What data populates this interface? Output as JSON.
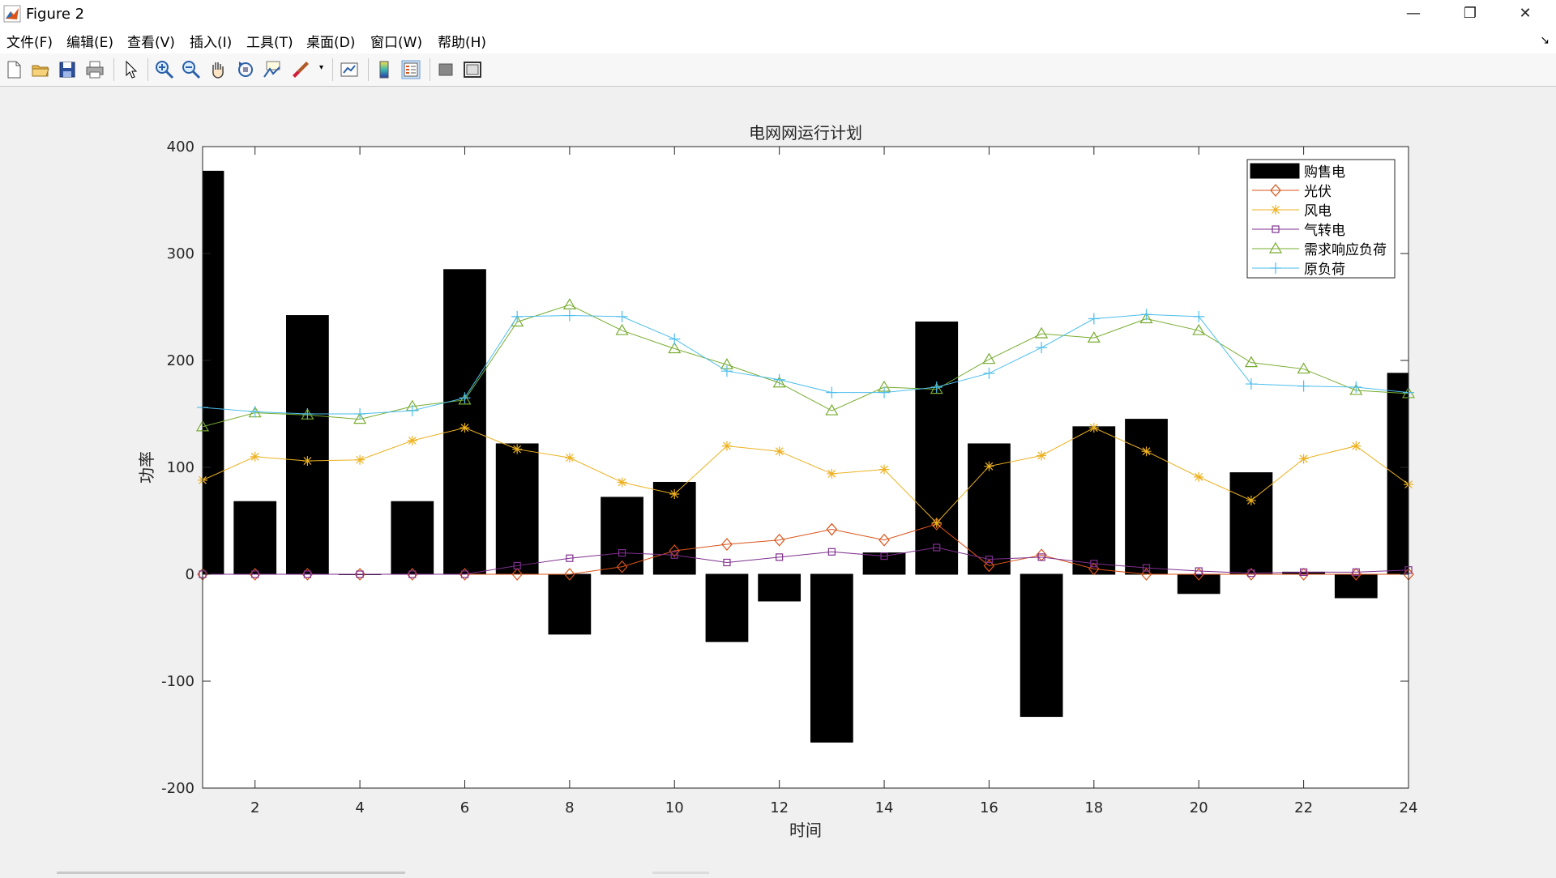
{
  "window": {
    "title": "Figure 2",
    "min": "—",
    "restore": "❐",
    "close": "✕",
    "dock": "↘"
  },
  "menu": [
    "文件(F)",
    "编辑(E)",
    "查看(V)",
    "插入(I)",
    "工具(T)",
    "桌面(D)",
    "窗口(W)",
    "帮助(H)"
  ],
  "toolbar_icons": [
    "new-figure-icon",
    "open-file-icon",
    "save-icon",
    "print-icon",
    "pointer-icon",
    "zoom-in-icon",
    "zoom-out-icon",
    "pan-icon",
    "rotate-3d-icon",
    "data-cursor-icon",
    "brush-icon",
    "link-plot-icon",
    "colorbar-icon",
    "legend-icon",
    "hide-plot-tools-icon",
    "show-plot-tools-icon"
  ],
  "colors": {
    "bar": "#0072BD",
    "光伏": "#D95319",
    "风电": "#EDB120",
    "气转电": "#7E2F8E",
    "需求响应负荷": "#77AC30",
    "原负荷": "#4DBEEE"
  },
  "chart_data": {
    "type": "bar",
    "title": "电网网运行计划",
    "xlabel": "时间",
    "ylabel": "功率",
    "xlim": [
      1,
      24
    ],
    "ylim": [
      -200,
      400
    ],
    "xticks": [
      2,
      4,
      6,
      8,
      10,
      12,
      14,
      16,
      18,
      20,
      22,
      24
    ],
    "yticks": [
      -200,
      -100,
      0,
      100,
      200,
      300,
      400
    ],
    "legend_position": "top-right",
    "x": [
      1,
      2,
      3,
      4,
      5,
      6,
      7,
      8,
      9,
      10,
      11,
      12,
      13,
      14,
      15,
      16,
      17,
      18,
      19,
      20,
      21,
      22,
      23,
      24
    ],
    "series": [
      {
        "name": "购售电",
        "type": "bar",
        "marker": "",
        "values": [
          377,
          68,
          242,
          0,
          68,
          285,
          122,
          -56,
          72,
          86,
          -63,
          -25,
          -157,
          20,
          236,
          122,
          -133,
          138,
          145,
          -18,
          95,
          2,
          -22,
          188
        ]
      },
      {
        "name": "光伏",
        "type": "line",
        "marker": "diamond",
        "values": [
          0,
          0,
          0,
          0,
          0,
          0,
          0,
          0,
          7,
          22,
          28,
          32,
          42,
          32,
          47,
          8,
          18,
          5,
          0,
          0,
          0,
          0,
          0,
          0
        ]
      },
      {
        "name": "风电",
        "type": "line",
        "marker": "star",
        "values": [
          88,
          110,
          106,
          107,
          125,
          137,
          117,
          109,
          86,
          75,
          120,
          115,
          94,
          98,
          48,
          101,
          111,
          137,
          115,
          91,
          69,
          108,
          120,
          84
        ]
      },
      {
        "name": "气转电",
        "type": "line",
        "marker": "square",
        "values": [
          0,
          0,
          0,
          0,
          0,
          0,
          8,
          15,
          20,
          18,
          11,
          16,
          21,
          17,
          25,
          14,
          16,
          10,
          6,
          3,
          1,
          2,
          2,
          4
        ]
      },
      {
        "name": "需求响应负荷",
        "type": "line",
        "marker": "triangle",
        "values": [
          138,
          151,
          149,
          145,
          157,
          163,
          236,
          252,
          228,
          211,
          196,
          179,
          153,
          175,
          173,
          201,
          225,
          221,
          239,
          228,
          198,
          192,
          172,
          169
        ]
      },
      {
        "name": "原负荷",
        "type": "line",
        "marker": "plus",
        "values": [
          156,
          152,
          150,
          150,
          153,
          165,
          241,
          242,
          241,
          220,
          190,
          182,
          170,
          170,
          175,
          188,
          212,
          239,
          243,
          241,
          178,
          176,
          175,
          170
        ]
      }
    ]
  }
}
